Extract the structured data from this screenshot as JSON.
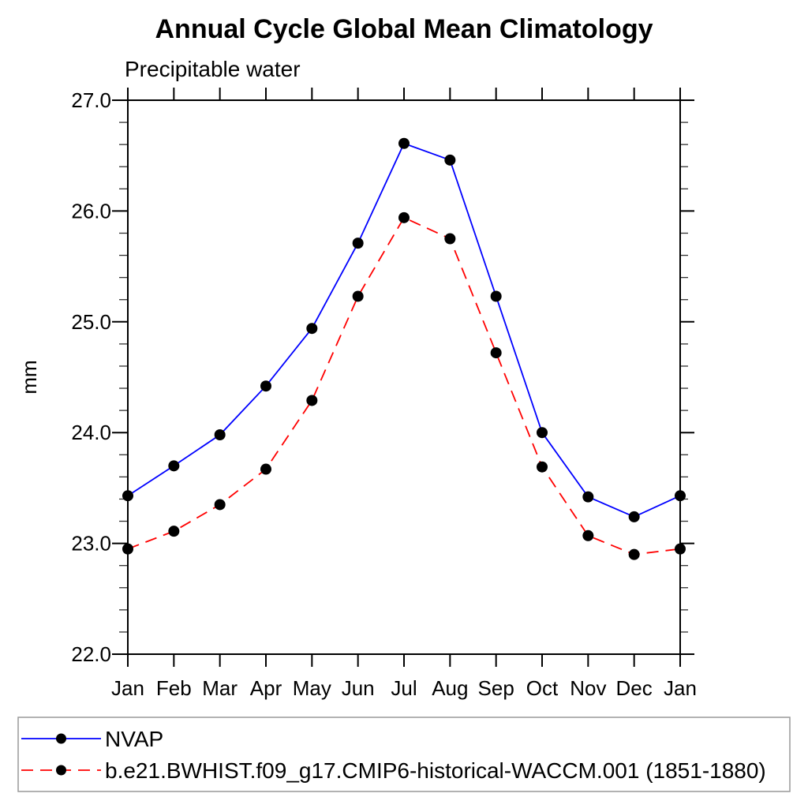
{
  "page": {
    "background_color": "#ffffff",
    "text_color": "#000000"
  },
  "chart_data": {
    "type": "line",
    "title": "Annual Cycle Global Mean Climatology",
    "subtitle": "Precipitable water",
    "xlabel": "",
    "ylabel": "mm",
    "x_categories": [
      "Jan",
      "Feb",
      "Mar",
      "Apr",
      "May",
      "Jun",
      "Jul",
      "Aug",
      "Sep",
      "Oct",
      "Nov",
      "Dec",
      "Jan"
    ],
    "ylim": [
      22.0,
      27.0
    ],
    "y_major_tick_step": 1.0,
    "y_minor_tick_step": 0.2,
    "y_tick_labels": [
      "22.0",
      "23.0",
      "24.0",
      "25.0",
      "26.0",
      "27.0"
    ],
    "grid": false,
    "legend_position": "bottom",
    "axis_color": "#000000",
    "marker_color": "#000000",
    "legend_border_color": "#999999",
    "series": [
      {
        "name": "NVAP",
        "color": "#0000ff",
        "line_style": "solid",
        "marker": "circle",
        "values": [
          23.43,
          23.7,
          23.98,
          24.42,
          24.94,
          25.71,
          26.61,
          26.46,
          25.23,
          24.0,
          23.42,
          23.24,
          23.43
        ]
      },
      {
        "name": "b.e21.BWHIST.f09_g17.CMIP6-historical-WACCM.001 (1851-1880)",
        "color": "#ff0000",
        "line_style": "dashed",
        "marker": "circle",
        "values": [
          22.95,
          23.11,
          23.35,
          23.67,
          24.29,
          25.23,
          25.94,
          25.75,
          24.72,
          23.69,
          23.07,
          22.9,
          22.95
        ]
      }
    ]
  }
}
